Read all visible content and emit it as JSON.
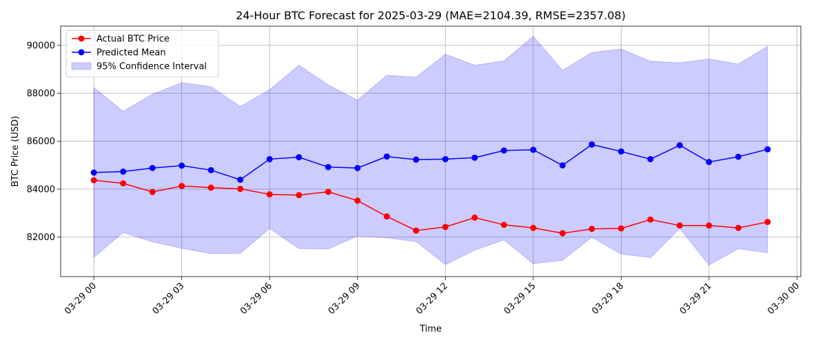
{
  "chart_data": {
    "type": "line",
    "title": "24-Hour BTC Forecast for 2025-03-29 (MAE=2104.39, RMSE=2357.08)",
    "xlabel": "Time",
    "ylabel": "BTC Price (USD)",
    "x": [
      "03-29 00:00",
      "03-29 01:00",
      "03-29 02:00",
      "03-29 03:00",
      "03-29 04:00",
      "03-29 05:00",
      "03-29 06:00",
      "03-29 07:00",
      "03-29 08:00",
      "03-29 09:00",
      "03-29 10:00",
      "03-29 11:00",
      "03-29 12:00",
      "03-29 13:00",
      "03-29 14:00",
      "03-29 15:00",
      "03-29 16:00",
      "03-29 17:00",
      "03-29 18:00",
      "03-29 19:00",
      "03-29 20:00",
      "03-29 21:00",
      "03-29 22:00",
      "03-29 23:00"
    ],
    "xlim": [
      "03-28 22:52",
      "03-30 00:08"
    ],
    "x_ticks": [
      "03-29 00",
      "03-29 03",
      "03-29 06",
      "03-29 09",
      "03-29 12",
      "03-29 15",
      "03-29 18",
      "03-29 21",
      "03-30 00"
    ],
    "y_ticks": [
      82000,
      84000,
      86000,
      88000,
      90000
    ],
    "ylim": [
      80350,
      90800
    ],
    "grid": true,
    "legend_position": "top-left",
    "series": [
      {
        "name": "Actual BTC Price",
        "color": "#ff0000",
        "marker": "circle",
        "values": [
          84370,
          84240,
          83880,
          84130,
          84060,
          84010,
          83780,
          83750,
          83890,
          83520,
          82860,
          82270,
          82420,
          82810,
          82510,
          82380,
          82160,
          82340,
          82360,
          82730,
          82480,
          82480,
          82380,
          82630
        ]
      },
      {
        "name": "Predicted Mean",
        "color": "#0000ff",
        "marker": "circle",
        "values": [
          84690,
          84730,
          84880,
          84980,
          84790,
          84390,
          85250,
          85330,
          84920,
          84880,
          85360,
          85230,
          85250,
          85310,
          85610,
          85640,
          84990,
          85860,
          85570,
          85250,
          85830,
          85130,
          85350,
          85660
        ]
      }
    ],
    "band": {
      "name": "95% Confidence Interval",
      "color": "#0000ff",
      "opacity": 0.2,
      "upper": [
        88240,
        87250,
        87960,
        88440,
        88280,
        87450,
        88150,
        89170,
        88350,
        87710,
        88750,
        88670,
        89630,
        89170,
        89350,
        90380,
        88950,
        89700,
        89850,
        89340,
        89270,
        89430,
        89220,
        89960
      ],
      "lower": [
        81150,
        82190,
        81800,
        81530,
        81310,
        81320,
        82360,
        81520,
        81500,
        82040,
        81970,
        81810,
        80850,
        81450,
        81880,
        80890,
        81030,
        81990,
        81290,
        81140,
        82360,
        80830,
        81510,
        81350
      ]
    }
  }
}
